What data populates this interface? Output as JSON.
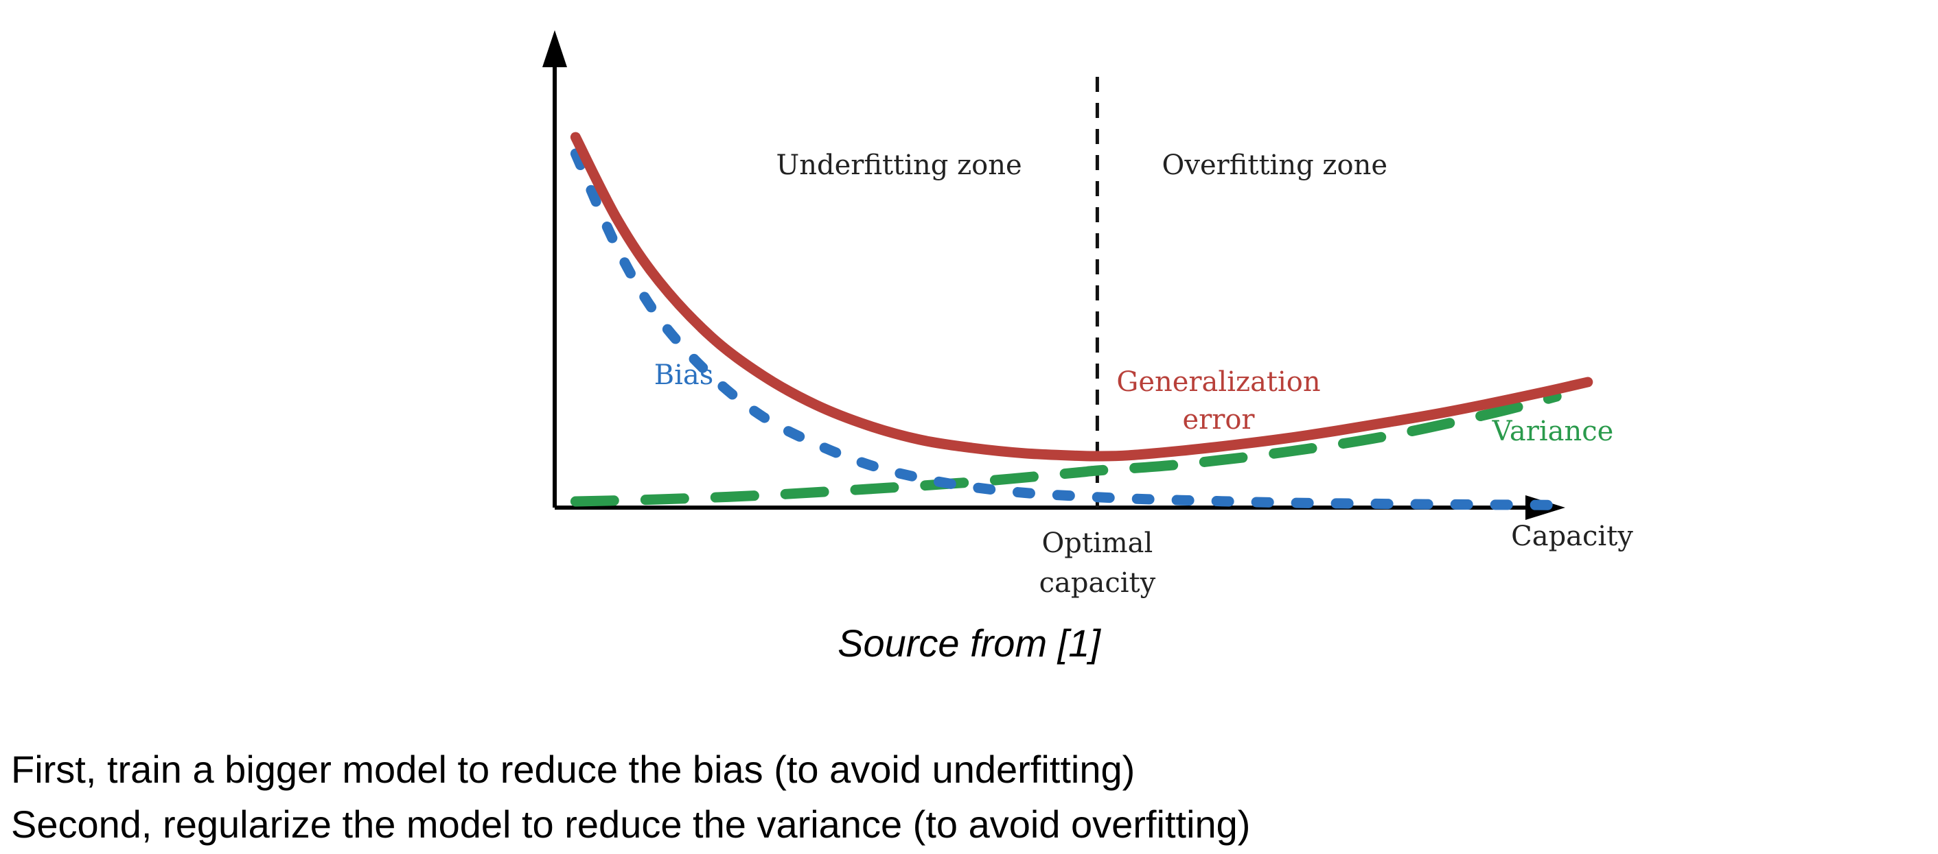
{
  "chart_data": {
    "type": "line",
    "xlabel": "Capacity",
    "ylabel": "",
    "xlim": [
      0,
      10
    ],
    "ylim": [
      0,
      10
    ],
    "grid": false,
    "optimal_capacity": 5.2,
    "optimal_label": [
      "Optimal",
      "capacity"
    ],
    "zones": [
      {
        "name": "Underfitting zone",
        "x": 3.3
      },
      {
        "name": "Overfitting zone",
        "x": 6.9
      }
    ],
    "series": [
      {
        "name": "Bias",
        "label_lines": [
          "Bias"
        ],
        "style": "dotted",
        "color": "#2c72c0",
        "x": [
          0.2,
          0.6,
          1.0,
          1.5,
          2.0,
          2.5,
          3.0,
          3.5,
          4.0,
          4.5,
          5.0,
          5.5,
          6.0,
          7.0,
          8.0,
          9.0,
          9.7
        ],
        "y": [
          8.6,
          6.3,
          4.6,
          3.2,
          2.2,
          1.55,
          1.05,
          0.72,
          0.5,
          0.36,
          0.28,
          0.22,
          0.18,
          0.12,
          0.09,
          0.07,
          0.06
        ]
      },
      {
        "name": "Generalization error",
        "label_lines": [
          "Generalization",
          "error"
        ],
        "style": "solid",
        "color": "#b8403a",
        "x": [
          0.2,
          0.6,
          1.0,
          1.5,
          2.0,
          2.5,
          3.0,
          3.5,
          4.0,
          4.5,
          5.0,
          5.2,
          5.5,
          6.0,
          6.5,
          7.0,
          7.5,
          8.0,
          8.5,
          9.0,
          9.5,
          9.9
        ],
        "y": [
          9.0,
          7.0,
          5.5,
          4.15,
          3.2,
          2.5,
          2.0,
          1.65,
          1.45,
          1.32,
          1.26,
          1.25,
          1.27,
          1.38,
          1.52,
          1.68,
          1.87,
          2.08,
          2.3,
          2.55,
          2.82,
          3.05
        ]
      },
      {
        "name": "Variance",
        "label_lines": [
          "Variance"
        ],
        "style": "dashed",
        "color": "#2a9a4c",
        "x": [
          0.2,
          1.0,
          2.0,
          3.0,
          4.0,
          5.0,
          5.2,
          6.0,
          7.0,
          8.0,
          9.0,
          9.6
        ],
        "y": [
          0.15,
          0.2,
          0.3,
          0.45,
          0.62,
          0.85,
          0.9,
          1.05,
          1.35,
          1.75,
          2.3,
          2.7
        ]
      }
    ]
  },
  "source_text": "Source from [1]",
  "notes": [
    "First, train a bigger model to reduce the bias (to avoid underfitting)",
    "Second, regularize the model to reduce the variance (to avoid overfitting)"
  ]
}
